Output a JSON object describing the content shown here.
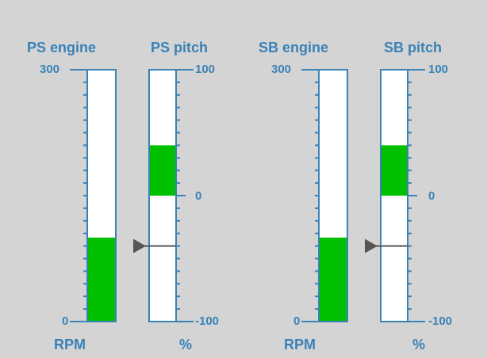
{
  "colors": {
    "background": "#d4d4d4",
    "scale": "#3a82b6",
    "fill": "#00c000",
    "bar_background": "#ffffff",
    "pointer": "#555555"
  },
  "gauges": [
    {
      "title": "PS engine",
      "unit": "RPM",
      "scale_max": "300",
      "scale_min": "0",
      "range": [
        0,
        300
      ],
      "value": 100
    },
    {
      "title": "PS pitch",
      "unit": "%",
      "scale_max": "100",
      "scale_mid": "0",
      "scale_min": "-100",
      "range": [
        -100,
        100
      ],
      "value_from": 0,
      "value_to": 40,
      "pointer_value": -40,
      "pointer_icon": "triangle-pointer-icon"
    },
    {
      "title": "SB engine",
      "unit": "RPM",
      "scale_max": "300",
      "scale_min": "0",
      "range": [
        0,
        300
      ],
      "value": 100
    },
    {
      "title": "SB pitch",
      "unit": "%",
      "scale_max": "100",
      "scale_mid": "0",
      "scale_min": "-100",
      "range": [
        -100,
        100
      ],
      "value_from": 0,
      "value_to": 40,
      "pointer_value": -40,
      "pointer_icon": "triangle-pointer-icon"
    }
  ]
}
